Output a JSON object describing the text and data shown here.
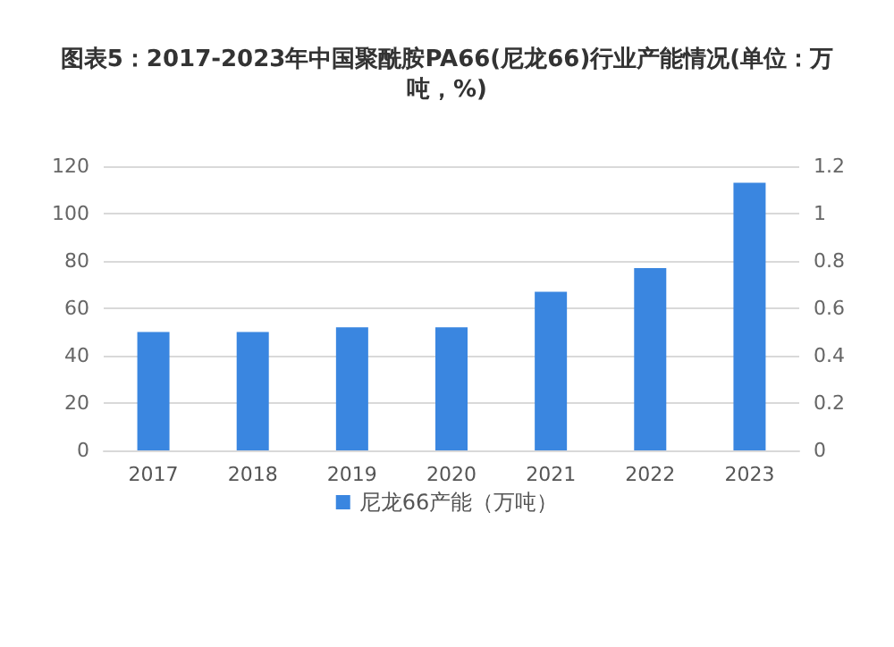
{
  "chart_data": {
    "type": "bar",
    "title": "图表5：2017-2023年中国聚酰胺PA66(尼龙66)行业产能情况(单位：万吨，%)",
    "categories": [
      "2017",
      "2018",
      "2019",
      "2020",
      "2021",
      "2022",
      "2023"
    ],
    "series": [
      {
        "name": "尼龙66产能（万吨）",
        "color": "#3a86e0",
        "values": [
          50,
          50,
          52,
          52,
          67,
          77,
          113
        ]
      }
    ],
    "ylim": [
      0,
      120
    ],
    "yticks": [
      0,
      20,
      40,
      60,
      80,
      100,
      120
    ],
    "y2lim": [
      0,
      1.2
    ],
    "y2ticks": [
      0,
      0.2,
      0.4,
      0.6,
      0.8,
      1,
      1.2
    ],
    "grid": "y",
    "legend": "bottom"
  }
}
